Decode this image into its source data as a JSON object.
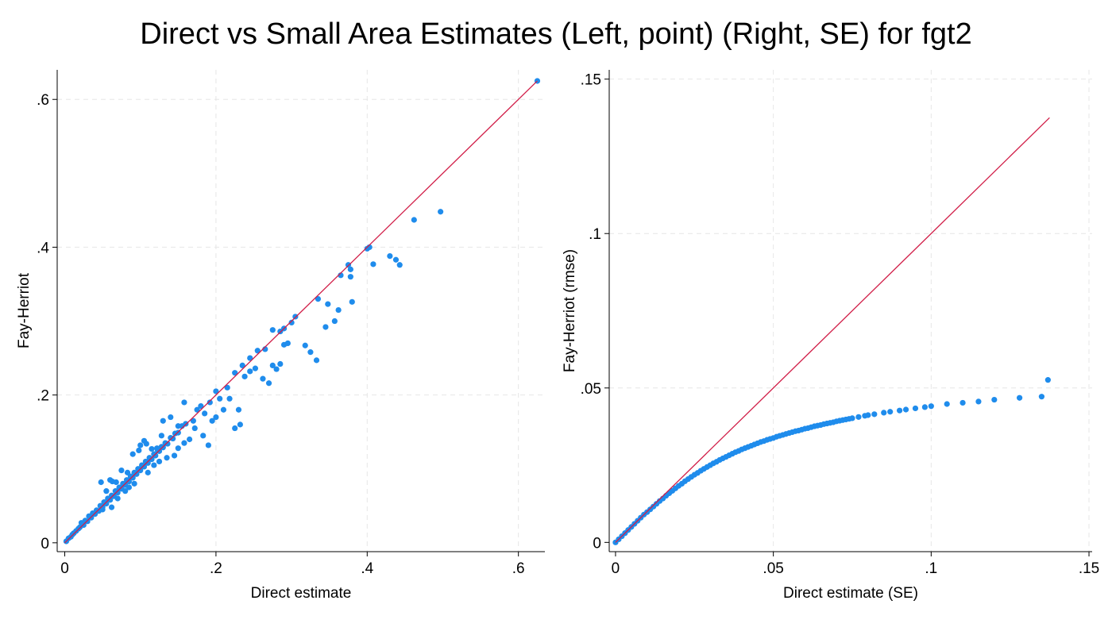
{
  "title": "Direct vs Small Area Estimates (Left, point) (Right, SE) for fgt2",
  "colors": {
    "points": "#1f8cec",
    "reference_line": "#d11e48",
    "grid": "#e6e6e6",
    "axis": "#000000"
  },
  "chart_data": [
    {
      "type": "scatter",
      "xlabel": "Direct estimate",
      "ylabel": "Fay-Herriot",
      "xlim": [
        -0.01,
        0.635
      ],
      "ylim": [
        -0.012,
        0.64
      ],
      "x_ticks": [
        0,
        0.2,
        0.4,
        0.6
      ],
      "x_tick_labels": [
        "0",
        ".2",
        ".4",
        ".6"
      ],
      "y_ticks": [
        0,
        0.2,
        0.4,
        0.6
      ],
      "y_tick_labels": [
        "0",
        ".2",
        ".4",
        ".6"
      ],
      "grid": true,
      "reference_line": {
        "from": [
          0,
          0
        ],
        "to": [
          0.625,
          0.625
        ]
      },
      "points": [
        [
          0.002,
          0.002
        ],
        [
          0.005,
          0.006
        ],
        [
          0.008,
          0.008
        ],
        [
          0.01,
          0.011
        ],
        [
          0.012,
          0.013
        ],
        [
          0.015,
          0.016
        ],
        [
          0.018,
          0.019
        ],
        [
          0.02,
          0.021
        ],
        [
          0.022,
          0.027
        ],
        [
          0.025,
          0.024
        ],
        [
          0.027,
          0.03
        ],
        [
          0.03,
          0.029
        ],
        [
          0.032,
          0.036
        ],
        [
          0.035,
          0.034
        ],
        [
          0.037,
          0.04
        ],
        [
          0.04,
          0.039
        ],
        [
          0.042,
          0.044
        ],
        [
          0.045,
          0.043
        ],
        [
          0.047,
          0.05
        ],
        [
          0.05,
          0.048
        ],
        [
          0.052,
          0.055
        ],
        [
          0.055,
          0.053
        ],
        [
          0.057,
          0.06
        ],
        [
          0.06,
          0.058
        ],
        [
          0.062,
          0.064
        ],
        [
          0.065,
          0.063
        ],
        [
          0.067,
          0.07
        ],
        [
          0.07,
          0.068
        ],
        [
          0.072,
          0.075
        ],
        [
          0.075,
          0.073
        ],
        [
          0.077,
          0.08
        ],
        [
          0.08,
          0.078
        ],
        [
          0.082,
          0.085
        ],
        [
          0.085,
          0.083
        ],
        [
          0.087,
          0.09
        ],
        [
          0.09,
          0.088
        ],
        [
          0.092,
          0.095
        ],
        [
          0.095,
          0.093
        ],
        [
          0.097,
          0.1
        ],
        [
          0.1,
          0.098
        ],
        [
          0.102,
          0.105
        ],
        [
          0.105,
          0.103
        ],
        [
          0.107,
          0.11
        ],
        [
          0.11,
          0.108
        ],
        [
          0.112,
          0.115
        ],
        [
          0.115,
          0.113
        ],
        [
          0.118,
          0.12
        ],
        [
          0.12,
          0.118
        ],
        [
          0.123,
          0.125
        ],
        [
          0.125,
          0.124
        ],
        [
          0.128,
          0.13
        ],
        [
          0.13,
          0.129
        ],
        [
          0.133,
          0.135
        ],
        [
          0.136,
          0.134
        ],
        [
          0.14,
          0.142
        ],
        [
          0.143,
          0.141
        ],
        [
          0.146,
          0.148
        ],
        [
          0.15,
          0.149
        ],
        [
          0.155,
          0.158
        ],
        [
          0.16,
          0.161
        ],
        [
          0.048,
          0.082
        ],
        [
          0.055,
          0.07
        ],
        [
          0.06,
          0.085
        ],
        [
          0.063,
          0.083
        ],
        [
          0.068,
          0.082
        ],
        [
          0.075,
          0.098
        ],
        [
          0.083,
          0.095
        ],
        [
          0.09,
          0.12
        ],
        [
          0.098,
          0.125
        ],
        [
          0.1,
          0.132
        ],
        [
          0.105,
          0.138
        ],
        [
          0.108,
          0.134
        ],
        [
          0.115,
          0.127
        ],
        [
          0.122,
          0.128
        ],
        [
          0.128,
          0.145
        ],
        [
          0.13,
          0.165
        ],
        [
          0.14,
          0.17
        ],
        [
          0.15,
          0.158
        ],
        [
          0.158,
          0.19
        ],
        [
          0.17,
          0.165
        ],
        [
          0.175,
          0.18
        ],
        [
          0.18,
          0.185
        ],
        [
          0.185,
          0.175
        ],
        [
          0.192,
          0.19
        ],
        [
          0.2,
          0.205
        ],
        [
          0.205,
          0.195
        ],
        [
          0.215,
          0.21
        ],
        [
          0.225,
          0.23
        ],
        [
          0.235,
          0.24
        ],
        [
          0.245,
          0.25
        ],
        [
          0.255,
          0.26
        ],
        [
          0.265,
          0.262
        ],
        [
          0.275,
          0.288
        ],
        [
          0.285,
          0.286
        ],
        [
          0.29,
          0.29
        ],
        [
          0.3,
          0.298
        ],
        [
          0.305,
          0.306
        ],
        [
          0.365,
          0.362
        ],
        [
          0.375,
          0.376
        ],
        [
          0.378,
          0.37
        ],
        [
          0.4,
          0.398
        ],
        [
          0.403,
          0.4
        ],
        [
          0.408,
          0.377
        ],
        [
          0.05,
          0.045
        ],
        [
          0.062,
          0.048
        ],
        [
          0.07,
          0.06
        ],
        [
          0.08,
          0.07
        ],
        [
          0.085,
          0.075
        ],
        [
          0.092,
          0.08
        ],
        [
          0.11,
          0.095
        ],
        [
          0.118,
          0.105
        ],
        [
          0.125,
          0.11
        ],
        [
          0.135,
          0.115
        ],
        [
          0.145,
          0.118
        ],
        [
          0.15,
          0.128
        ],
        [
          0.158,
          0.135
        ],
        [
          0.165,
          0.14
        ],
        [
          0.172,
          0.155
        ],
        [
          0.183,
          0.145
        ],
        [
          0.19,
          0.132
        ],
        [
          0.195,
          0.165
        ],
        [
          0.2,
          0.17
        ],
        [
          0.21,
          0.18
        ],
        [
          0.218,
          0.195
        ],
        [
          0.225,
          0.155
        ],
        [
          0.23,
          0.18
        ],
        [
          0.232,
          0.16
        ],
        [
          0.238,
          0.225
        ],
        [
          0.245,
          0.232
        ],
        [
          0.252,
          0.236
        ],
        [
          0.262,
          0.222
        ],
        [
          0.27,
          0.216
        ],
        [
          0.275,
          0.24
        ],
        [
          0.28,
          0.235
        ],
        [
          0.285,
          0.242
        ],
        [
          0.29,
          0.268
        ],
        [
          0.295,
          0.27
        ],
        [
          0.318,
          0.267
        ],
        [
          0.325,
          0.258
        ],
        [
          0.333,
          0.247
        ],
        [
          0.335,
          0.33
        ],
        [
          0.345,
          0.292
        ],
        [
          0.348,
          0.323
        ],
        [
          0.357,
          0.3
        ],
        [
          0.362,
          0.315
        ],
        [
          0.378,
          0.36
        ],
        [
          0.38,
          0.326
        ],
        [
          0.43,
          0.388
        ],
        [
          0.438,
          0.383
        ],
        [
          0.443,
          0.376
        ],
        [
          0.462,
          0.437
        ],
        [
          0.497,
          0.448
        ],
        [
          0.625,
          0.625
        ]
      ]
    },
    {
      "type": "scatter",
      "xlabel": "Direct estimate (SE)",
      "ylabel": "Fay-Herriot (rmse)",
      "xlim": [
        -0.002,
        0.151
      ],
      "ylim": [
        -0.003,
        0.153
      ],
      "x_ticks": [
        0,
        0.05,
        0.1,
        0.15
      ],
      "x_tick_labels": [
        "0",
        ".05",
        ".1",
        ".15"
      ],
      "y_ticks": [
        0,
        0.05,
        0.1,
        0.15
      ],
      "y_tick_labels": [
        "0",
        ".05",
        ".1",
        ".15"
      ],
      "grid": true,
      "reference_line": {
        "from": [
          0,
          0
        ],
        "to": [
          0.1375,
          0.1375
        ]
      },
      "points": [
        [
          0.0,
          0.0
        ],
        [
          0.001,
          0.001
        ],
        [
          0.002,
          0.002
        ],
        [
          0.003,
          0.003
        ],
        [
          0.004,
          0.004
        ],
        [
          0.005,
          0.005
        ],
        [
          0.006,
          0.006
        ],
        [
          0.007,
          0.007
        ],
        [
          0.008,
          0.008
        ],
        [
          0.009,
          0.009
        ],
        [
          0.01,
          0.0098
        ],
        [
          0.011,
          0.0107
        ],
        [
          0.012,
          0.0116
        ],
        [
          0.013,
          0.0125
        ],
        [
          0.014,
          0.0134
        ],
        [
          0.015,
          0.0142
        ],
        [
          0.016,
          0.0151
        ],
        [
          0.017,
          0.0159
        ],
        [
          0.018,
          0.0167
        ],
        [
          0.019,
          0.0175
        ],
        [
          0.02,
          0.0183
        ],
        [
          0.021,
          0.019
        ],
        [
          0.022,
          0.0198
        ],
        [
          0.023,
          0.0205
        ],
        [
          0.024,
          0.0212
        ],
        [
          0.025,
          0.0219
        ],
        [
          0.026,
          0.0225
        ],
        [
          0.027,
          0.0232
        ],
        [
          0.028,
          0.0238
        ],
        [
          0.029,
          0.0244
        ],
        [
          0.03,
          0.025
        ],
        [
          0.031,
          0.0256
        ],
        [
          0.032,
          0.0261
        ],
        [
          0.033,
          0.0267
        ],
        [
          0.034,
          0.0272
        ],
        [
          0.035,
          0.0277
        ],
        [
          0.036,
          0.0282
        ],
        [
          0.037,
          0.0287
        ],
        [
          0.038,
          0.0292
        ],
        [
          0.039,
          0.0296
        ],
        [
          0.04,
          0.0301
        ],
        [
          0.041,
          0.0305
        ],
        [
          0.042,
          0.0309
        ],
        [
          0.043,
          0.0313
        ],
        [
          0.044,
          0.0317
        ],
        [
          0.045,
          0.0321
        ],
        [
          0.046,
          0.0325
        ],
        [
          0.047,
          0.0328
        ],
        [
          0.048,
          0.0332
        ],
        [
          0.049,
          0.0335
        ],
        [
          0.05,
          0.0338
        ],
        [
          0.051,
          0.0342
        ],
        [
          0.052,
          0.0345
        ],
        [
          0.053,
          0.0348
        ],
        [
          0.054,
          0.0351
        ],
        [
          0.055,
          0.0354
        ],
        [
          0.056,
          0.0357
        ],
        [
          0.057,
          0.036
        ],
        [
          0.058,
          0.0362
        ],
        [
          0.059,
          0.0365
        ],
        [
          0.06,
          0.0368
        ],
        [
          0.061,
          0.037
        ],
        [
          0.062,
          0.0373
        ],
        [
          0.063,
          0.0376
        ],
        [
          0.064,
          0.0378
        ],
        [
          0.065,
          0.038
        ],
        [
          0.066,
          0.0383
        ],
        [
          0.067,
          0.0385
        ],
        [
          0.068,
          0.0387
        ],
        [
          0.069,
          0.0389
        ],
        [
          0.07,
          0.0392
        ],
        [
          0.071,
          0.0394
        ],
        [
          0.072,
          0.0396
        ],
        [
          0.073,
          0.0398
        ],
        [
          0.074,
          0.04
        ],
        [
          0.075,
          0.0402
        ],
        [
          0.077,
          0.0406
        ],
        [
          0.079,
          0.041
        ],
        [
          0.08,
          0.0412
        ],
        [
          0.082,
          0.0415
        ],
        [
          0.085,
          0.042
        ],
        [
          0.087,
          0.0423
        ],
        [
          0.09,
          0.0427
        ],
        [
          0.092,
          0.043
        ],
        [
          0.095,
          0.0434
        ],
        [
          0.098,
          0.0438
        ],
        [
          0.1,
          0.0441
        ],
        [
          0.105,
          0.0448
        ],
        [
          0.11,
          0.0452
        ],
        [
          0.115,
          0.0456
        ],
        [
          0.12,
          0.0462
        ],
        [
          0.128,
          0.0468
        ],
        [
          0.135,
          0.0472
        ],
        [
          0.137,
          0.0526
        ]
      ]
    }
  ]
}
